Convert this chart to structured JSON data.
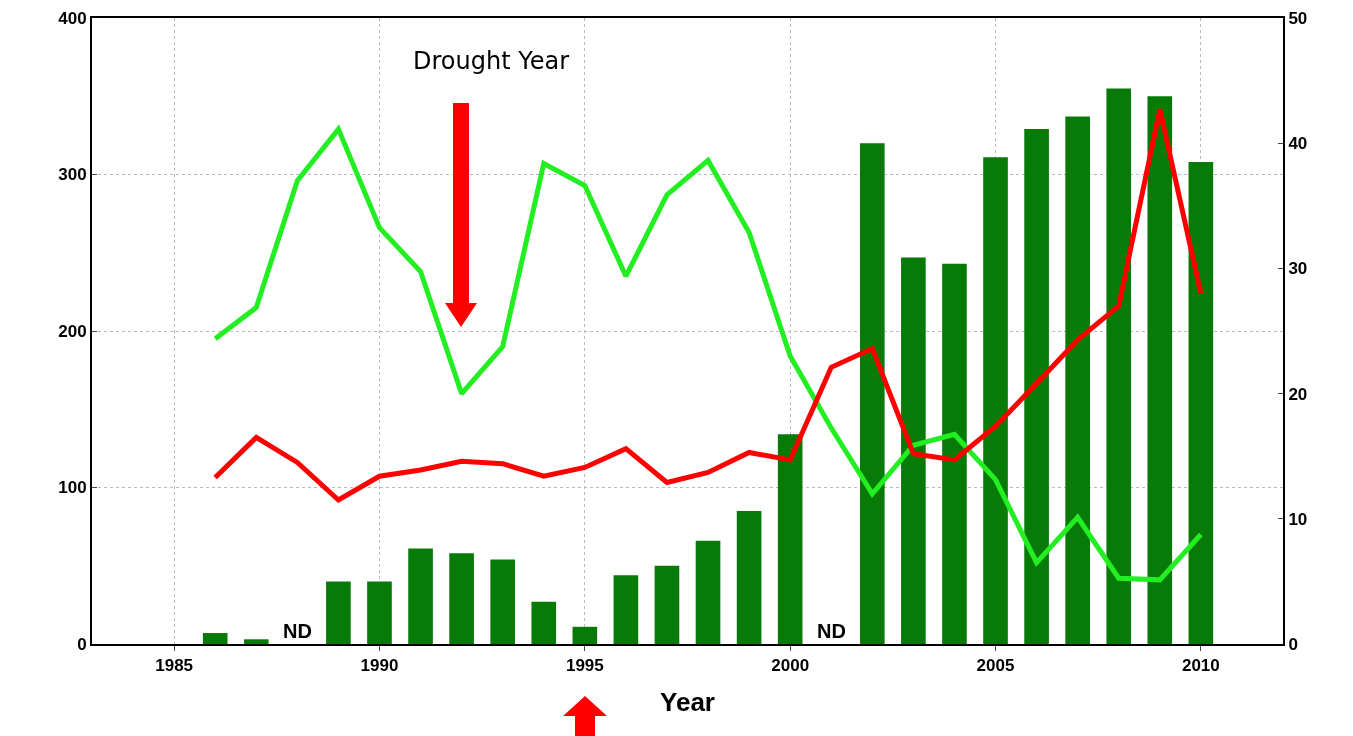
{
  "chart_data": {
    "type": "bar",
    "xlabel": "Year",
    "x": [
      1986,
      1987,
      1988,
      1989,
      1990,
      1991,
      1992,
      1993,
      1994,
      1995,
      1996,
      1997,
      1998,
      1999,
      2000,
      2001,
      2002,
      2003,
      2004,
      2005,
      2006,
      2007,
      2008,
      2009,
      2010
    ],
    "series": [
      {
        "color": "#087a08",
        "values": [
          7,
          3,
          null,
          40,
          40,
          61,
          58,
          54,
          27,
          11,
          44,
          50,
          66,
          85,
          134,
          null,
          320,
          247,
          243,
          311,
          329,
          337,
          355,
          350,
          308
        ]
      },
      {
        "type": "line",
        "color": "#22ee22",
        "values": [
          195,
          215,
          296,
          329,
          266,
          238,
          160,
          190,
          307,
          293,
          235,
          287,
          309,
          263,
          184,
          138,
          96,
          127,
          134,
          105,
          52,
          81,
          42,
          41,
          70
        ]
      },
      {
        "type": "line",
        "axis": "y2",
        "color": "#ff0000",
        "values": [
          13.3,
          16.5,
          14.5,
          11.5,
          13.4,
          13.9,
          14.6,
          14.4,
          13.4,
          14.1,
          15.6,
          12.9,
          13.7,
          15.3,
          14.7,
          22.1,
          23.6,
          15.2,
          14.7,
          17.4,
          20.8,
          24.3,
          27,
          42.7,
          28
        ]
      }
    ],
    "annotations": [
      "Drought Year",
      "ND",
      "ND"
    ],
    "xlim": [
      1983,
      2012
    ],
    "xticks": [
      1985,
      1990,
      1995,
      2000,
      2005,
      2010
    ],
    "ylim": [
      0,
      400
    ],
    "yticks": [
      0,
      100,
      200,
      300,
      400
    ],
    "y2lim": [
      0,
      50
    ],
    "y2ticks": [
      0,
      10,
      20,
      30,
      40,
      50
    ],
    "grid": true,
    "line_style": "solid",
    "marker": "none"
  }
}
